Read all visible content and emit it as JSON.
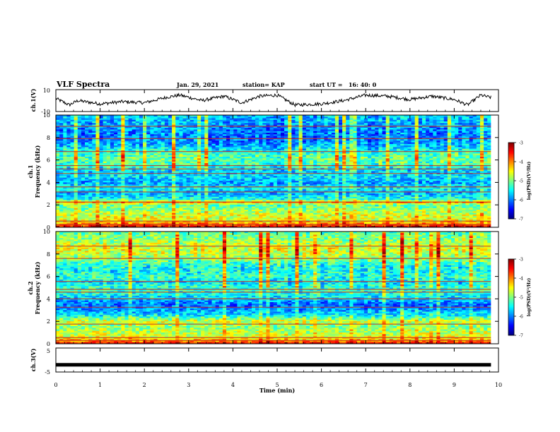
{
  "header": {
    "title": "VLF Spectra",
    "date": "Jan. 29, 2021",
    "station": "station= KAP",
    "start": "start UT =   16: 40: 0"
  },
  "chart_data": [
    {
      "type": "line",
      "name": "ch1_waveform",
      "ylabel": "ch.1(V)",
      "yticks": [
        "10",
        "-10"
      ],
      "ylim": [
        -10,
        10
      ],
      "xlim": [
        0,
        10
      ],
      "x_end": 9.83,
      "trend": [
        [
          0,
          2
        ],
        [
          0.3,
          -4
        ],
        [
          0.5,
          0
        ],
        [
          1.0,
          -3
        ],
        [
          1.5,
          -1
        ],
        [
          2.0,
          -2
        ],
        [
          2.5,
          3
        ],
        [
          2.8,
          5
        ],
        [
          3.3,
          0
        ],
        [
          3.8,
          4
        ],
        [
          4.2,
          -2
        ],
        [
          4.6,
          4
        ],
        [
          5.0,
          5
        ],
        [
          5.4,
          -4
        ],
        [
          6.0,
          -3
        ],
        [
          6.5,
          0
        ],
        [
          7.0,
          5
        ],
        [
          7.5,
          4
        ],
        [
          8.0,
          1
        ],
        [
          8.5,
          4
        ],
        [
          9.0,
          1
        ],
        [
          9.3,
          -4
        ],
        [
          9.6,
          5
        ],
        [
          9.8,
          3
        ]
      ]
    },
    {
      "type": "heatmap",
      "name": "ch1_spectrogram",
      "ylabel": "ch.1",
      "ylabel2": "Frequency (kHz)",
      "yticks": [
        "0",
        "2",
        "4",
        "6",
        "8",
        "10"
      ],
      "ylim": [
        0,
        10
      ],
      "xlim": [
        0,
        10
      ],
      "x_end": 9.83,
      "colorscale": {
        "label": "log(PSD)(V²/Hz)",
        "ticks": [
          "-3",
          "-4",
          "-5",
          "-6",
          "-7"
        ],
        "range": [
          -7,
          -3
        ]
      },
      "freq_profile": [
        [
          0,
          -3.3
        ],
        [
          0.3,
          -4.0
        ],
        [
          0.6,
          -4.6
        ],
        [
          1.0,
          -4.6
        ],
        [
          1.5,
          -4.9
        ],
        [
          2.0,
          -5.2
        ],
        [
          2.2,
          -4.2
        ],
        [
          2.5,
          -5.4
        ],
        [
          3.0,
          -5.8
        ],
        [
          3.5,
          -5.5
        ],
        [
          4.0,
          -5.9
        ],
        [
          4.5,
          -5.6
        ],
        [
          5.0,
          -5.7
        ],
        [
          5.5,
          -5.3
        ],
        [
          6.0,
          -5.1
        ],
        [
          6.5,
          -5.2
        ],
        [
          7.0,
          -5.6
        ],
        [
          7.5,
          -5.9
        ],
        [
          8.0,
          -6.1
        ],
        [
          8.5,
          -6.0
        ],
        [
          9.0,
          -5.9
        ],
        [
          9.5,
          -5.8
        ],
        [
          10,
          -5.7
        ]
      ],
      "lines_khz": [
        0.25,
        0.55,
        2.25,
        3.15,
        3.6,
        4.8,
        5.2,
        5.5,
        6.75,
        7.9,
        9.0
      ]
    },
    {
      "type": "heatmap",
      "name": "ch2_spectrogram",
      "ylabel": "ch.2",
      "ylabel2": "Frequency (kHz)",
      "yticks": [
        "0",
        "2",
        "4",
        "6",
        "8",
        "10"
      ],
      "ylim": [
        0,
        10
      ],
      "xlim": [
        0,
        10
      ],
      "x_end": 9.83,
      "colorscale": {
        "label": "log(PSD)(V²/Hz)",
        "ticks": [
          "-3",
          "-4",
          "-5",
          "-6",
          "-7"
        ],
        "range": [
          -7,
          -3
        ]
      },
      "freq_profile": [
        [
          0,
          -3.4
        ],
        [
          0.3,
          -4.2
        ],
        [
          0.6,
          -4.6
        ],
        [
          1.0,
          -4.7
        ],
        [
          1.5,
          -5.0
        ],
        [
          2.0,
          -4.6
        ],
        [
          2.5,
          -5.5
        ],
        [
          3.0,
          -5.9
        ],
        [
          3.5,
          -6.1
        ],
        [
          4.0,
          -5.7
        ],
        [
          4.5,
          -5.4
        ],
        [
          5.0,
          -5.3
        ],
        [
          5.5,
          -5.6
        ],
        [
          6.0,
          -5.3
        ],
        [
          6.5,
          -5.5
        ],
        [
          7.0,
          -5.4
        ],
        [
          7.5,
          -5.0
        ],
        [
          8.0,
          -4.7
        ],
        [
          8.5,
          -4.6
        ],
        [
          9.0,
          -4.8
        ],
        [
          9.5,
          -5.0
        ],
        [
          10,
          -5.2
        ]
      ],
      "lines_khz": [
        0.3,
        0.55,
        1.75,
        3.25,
        4.0,
        4.6,
        4.85,
        5.55,
        7.6,
        8.7
      ]
    },
    {
      "type": "line",
      "name": "ch3_waveform",
      "ylabel": "ch.3(V)",
      "yticks": [
        "5",
        "-5"
      ],
      "ylim": [
        -5,
        5
      ],
      "xlim": [
        0,
        10
      ],
      "x_end": 9.83,
      "level": -2
    }
  ],
  "xaxis": {
    "label": "Time (min)",
    "ticks": [
      "0",
      "1",
      "2",
      "3",
      "4",
      "5",
      "6",
      "7",
      "8",
      "9",
      "10"
    ]
  }
}
